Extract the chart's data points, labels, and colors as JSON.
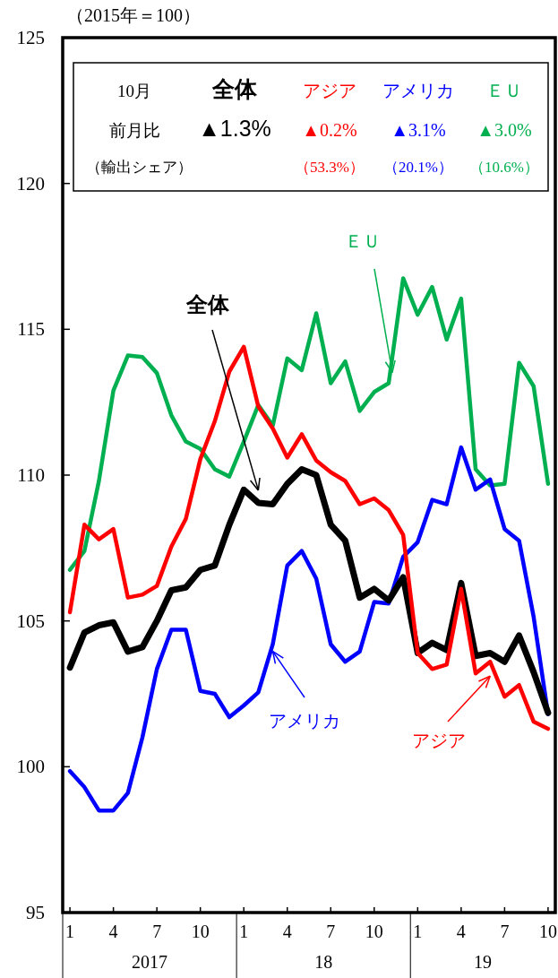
{
  "chart_data": {
    "type": "line",
    "ylabel": "（2015年＝100）",
    "x": [
      "2017-01",
      "2017-02",
      "2017-03",
      "2017-04",
      "2017-05",
      "2017-06",
      "2017-07",
      "2017-08",
      "2017-09",
      "2017-10",
      "2017-11",
      "2017-12",
      "2018-01",
      "2018-02",
      "2018-03",
      "2018-04",
      "2018-05",
      "2018-06",
      "2018-07",
      "2018-08",
      "2018-09",
      "2018-10",
      "2018-11",
      "2018-12",
      "2019-01",
      "2019-02",
      "2019-03",
      "2019-04",
      "2019-05",
      "2019-06",
      "2019-07",
      "2019-08",
      "2019-09",
      "2019-10"
    ],
    "xlim": [
      "2016-12-16",
      "2019-10-16"
    ],
    "xticks": [
      {
        "value": "2017-01",
        "label": "1"
      },
      {
        "value": "2017-04",
        "label": "4"
      },
      {
        "value": "2017-07",
        "label": "7"
      },
      {
        "value": "2017-10",
        "label": "10"
      },
      {
        "value": "2018-01",
        "label": "1"
      },
      {
        "value": "2018-04",
        "label": "4"
      },
      {
        "value": "2018-07",
        "label": "7"
      },
      {
        "value": "2018-10",
        "label": "10"
      },
      {
        "value": "2019-01",
        "label": "1"
      },
      {
        "value": "2019-04",
        "label": "4"
      },
      {
        "value": "2019-07",
        "label": "7"
      },
      {
        "value": "2019-10",
        "label": "10"
      }
    ],
    "ylim": [
      95,
      125
    ],
    "yticks": [
      95,
      100,
      105,
      110,
      115,
      120,
      125
    ],
    "series": [
      {
        "name": "全体",
        "color": "#000000",
        "values": [
          103.4,
          104.6,
          104.85,
          104.95,
          103.95,
          104.1,
          105.0,
          106.05,
          106.15,
          106.75,
          106.9,
          108.3,
          109.5,
          109.05,
          109.0,
          109.7,
          110.2,
          110.0,
          108.3,
          107.75,
          105.8,
          106.1,
          105.7,
          106.5,
          103.9,
          104.25,
          104.0,
          106.3,
          103.8,
          103.9,
          103.6,
          104.5,
          103.25,
          101.85
        ]
      },
      {
        "name": "アジア",
        "color": "#ff0000",
        "values": [
          105.3,
          108.3,
          107.8,
          108.15,
          105.8,
          105.9,
          106.2,
          107.55,
          108.5,
          110.55,
          111.85,
          113.55,
          114.4,
          112.35,
          111.6,
          110.6,
          111.4,
          110.5,
          110.1,
          109.8,
          109.0,
          109.2,
          108.8,
          107.95,
          103.9,
          103.35,
          103.5,
          106.1,
          103.2,
          103.6,
          102.4,
          102.8,
          101.55,
          101.3
        ]
      },
      {
        "name": "アメリカ",
        "color": "#0000ff",
        "values": [
          99.85,
          99.3,
          98.5,
          98.5,
          99.1,
          101.0,
          103.35,
          104.7,
          104.7,
          102.6,
          102.5,
          101.7,
          102.1,
          102.55,
          104.2,
          106.9,
          107.4,
          106.45,
          104.2,
          103.6,
          103.95,
          105.65,
          105.6,
          107.2,
          107.7,
          109.15,
          109.0,
          110.95,
          109.5,
          109.85,
          108.15,
          107.75,
          105.15,
          101.8
        ]
      },
      {
        "name": "ＥＵ",
        "color": "#00b050",
        "values": [
          106.75,
          107.4,
          109.8,
          112.9,
          114.1,
          114.05,
          113.5,
          112.05,
          111.15,
          110.9,
          110.2,
          109.95,
          111.15,
          112.4,
          111.7,
          114.0,
          113.6,
          115.55,
          113.15,
          113.9,
          112.2,
          112.85,
          113.15,
          116.75,
          115.5,
          116.45,
          114.65,
          116.05,
          110.2,
          109.65,
          109.7,
          113.85,
          113.05,
          109.7
        ]
      }
    ],
    "annotations": [
      "2017",
      "18",
      "19",
      "10月",
      "前月比",
      "（輸出シェア）",
      "▲1.3%",
      "▲0.2%",
      "▲3.1%",
      "▲3.0%",
      "（53.3%）",
      "（20.1%）",
      "（10.6%）"
    ]
  }
}
